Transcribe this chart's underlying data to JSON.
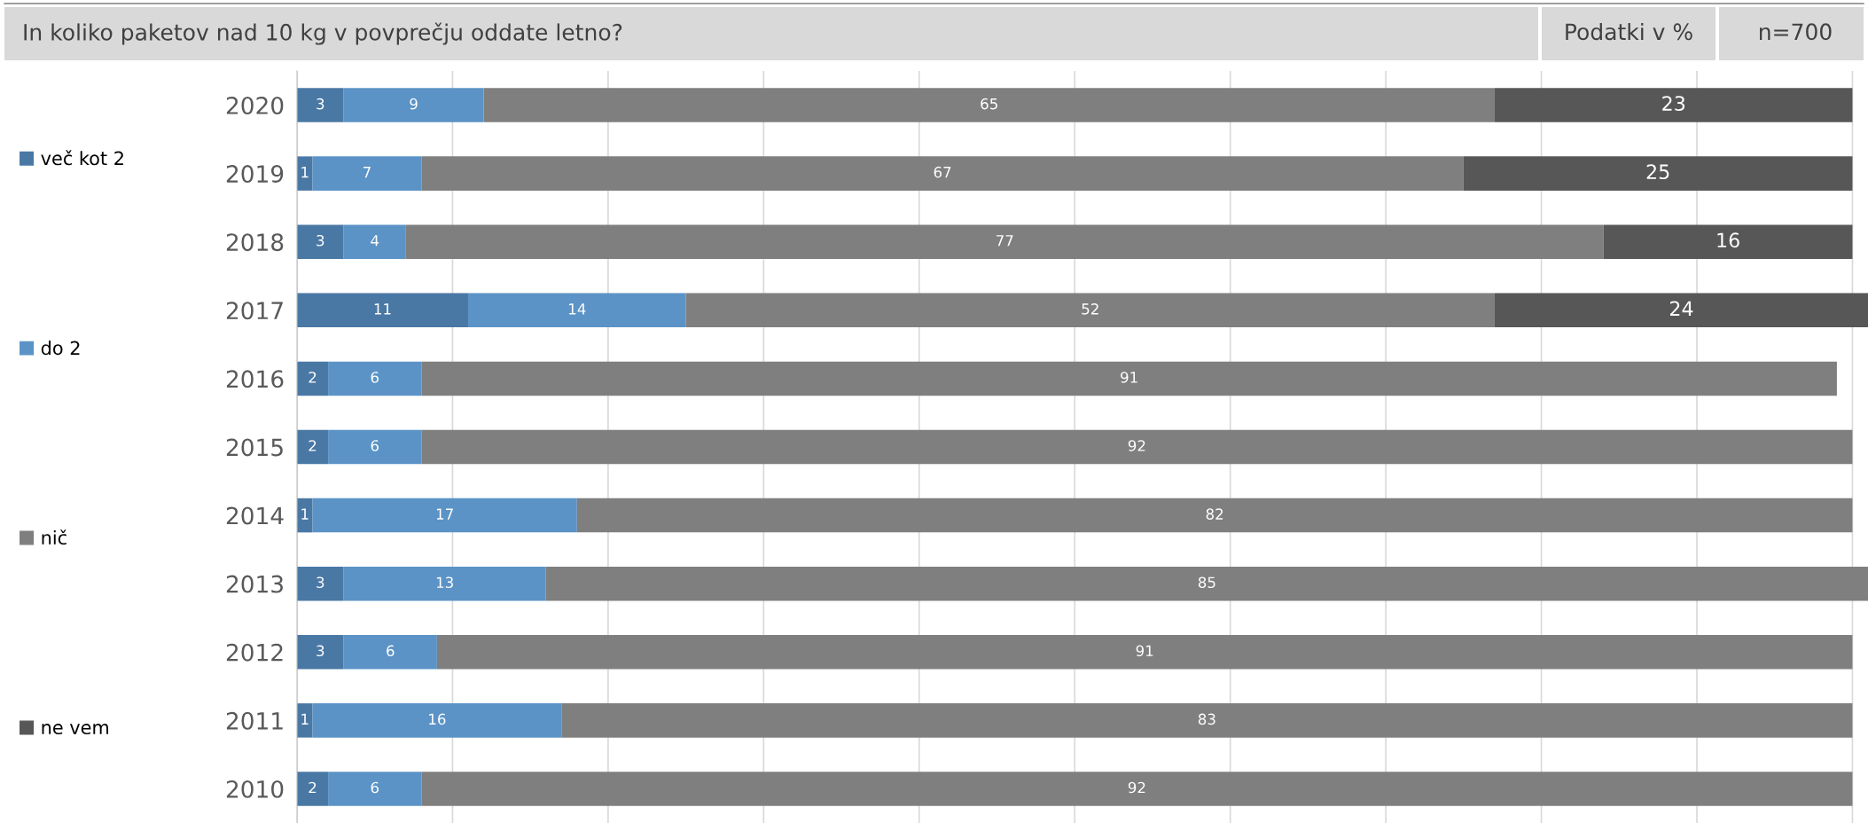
{
  "chart_data": {
    "type": "bar",
    "orientation": "horizontal",
    "stacked": true,
    "title": "In koliko paketov nad 10 kg v povprečju oddate letno?",
    "annotations": [
      "Podatki v %",
      "n=700"
    ],
    "categories": [
      "2020",
      "2019",
      "2018",
      "2017",
      "2016",
      "2015",
      "2014",
      "2013",
      "2012",
      "2011",
      "2010"
    ],
    "series": [
      {
        "name": "več kot 2",
        "color": "#4a78a5",
        "values": [
          3,
          1,
          3,
          11,
          2,
          2,
          1,
          3,
          3,
          1,
          2
        ]
      },
      {
        "name": "do 2",
        "color": "#5b93c6",
        "values": [
          9,
          7,
          4,
          14,
          6,
          6,
          17,
          13,
          6,
          16,
          6
        ]
      },
      {
        "name": "nič",
        "color": "#7f7f7f",
        "values": [
          65,
          67,
          77,
          52,
          91,
          92,
          82,
          85,
          91,
          83,
          92
        ]
      },
      {
        "name": "ne vem",
        "color": "#575757",
        "values": [
          23,
          25,
          16,
          24,
          null,
          null,
          null,
          null,
          null,
          null,
          null
        ]
      }
    ],
    "xlim": [
      0,
      101
    ],
    "xticks": [
      {
        "value": 0,
        "label": null
      },
      {
        "value": 10,
        "label": null
      },
      {
        "value": 20,
        "label": null
      },
      {
        "value": 30,
        "label": null
      },
      {
        "value": 40,
        "label": null
      },
      {
        "value": 50,
        "label": null
      },
      {
        "value": 60,
        "label": null
      },
      {
        "value": 70,
        "label": null
      },
      {
        "value": 80,
        "label": null
      },
      {
        "value": 90,
        "label": null
      },
      {
        "value": 100,
        "label": null
      }
    ],
    "grid": "x",
    "legend": "left",
    "data_labels": true,
    "tick_labels": "y"
  }
}
